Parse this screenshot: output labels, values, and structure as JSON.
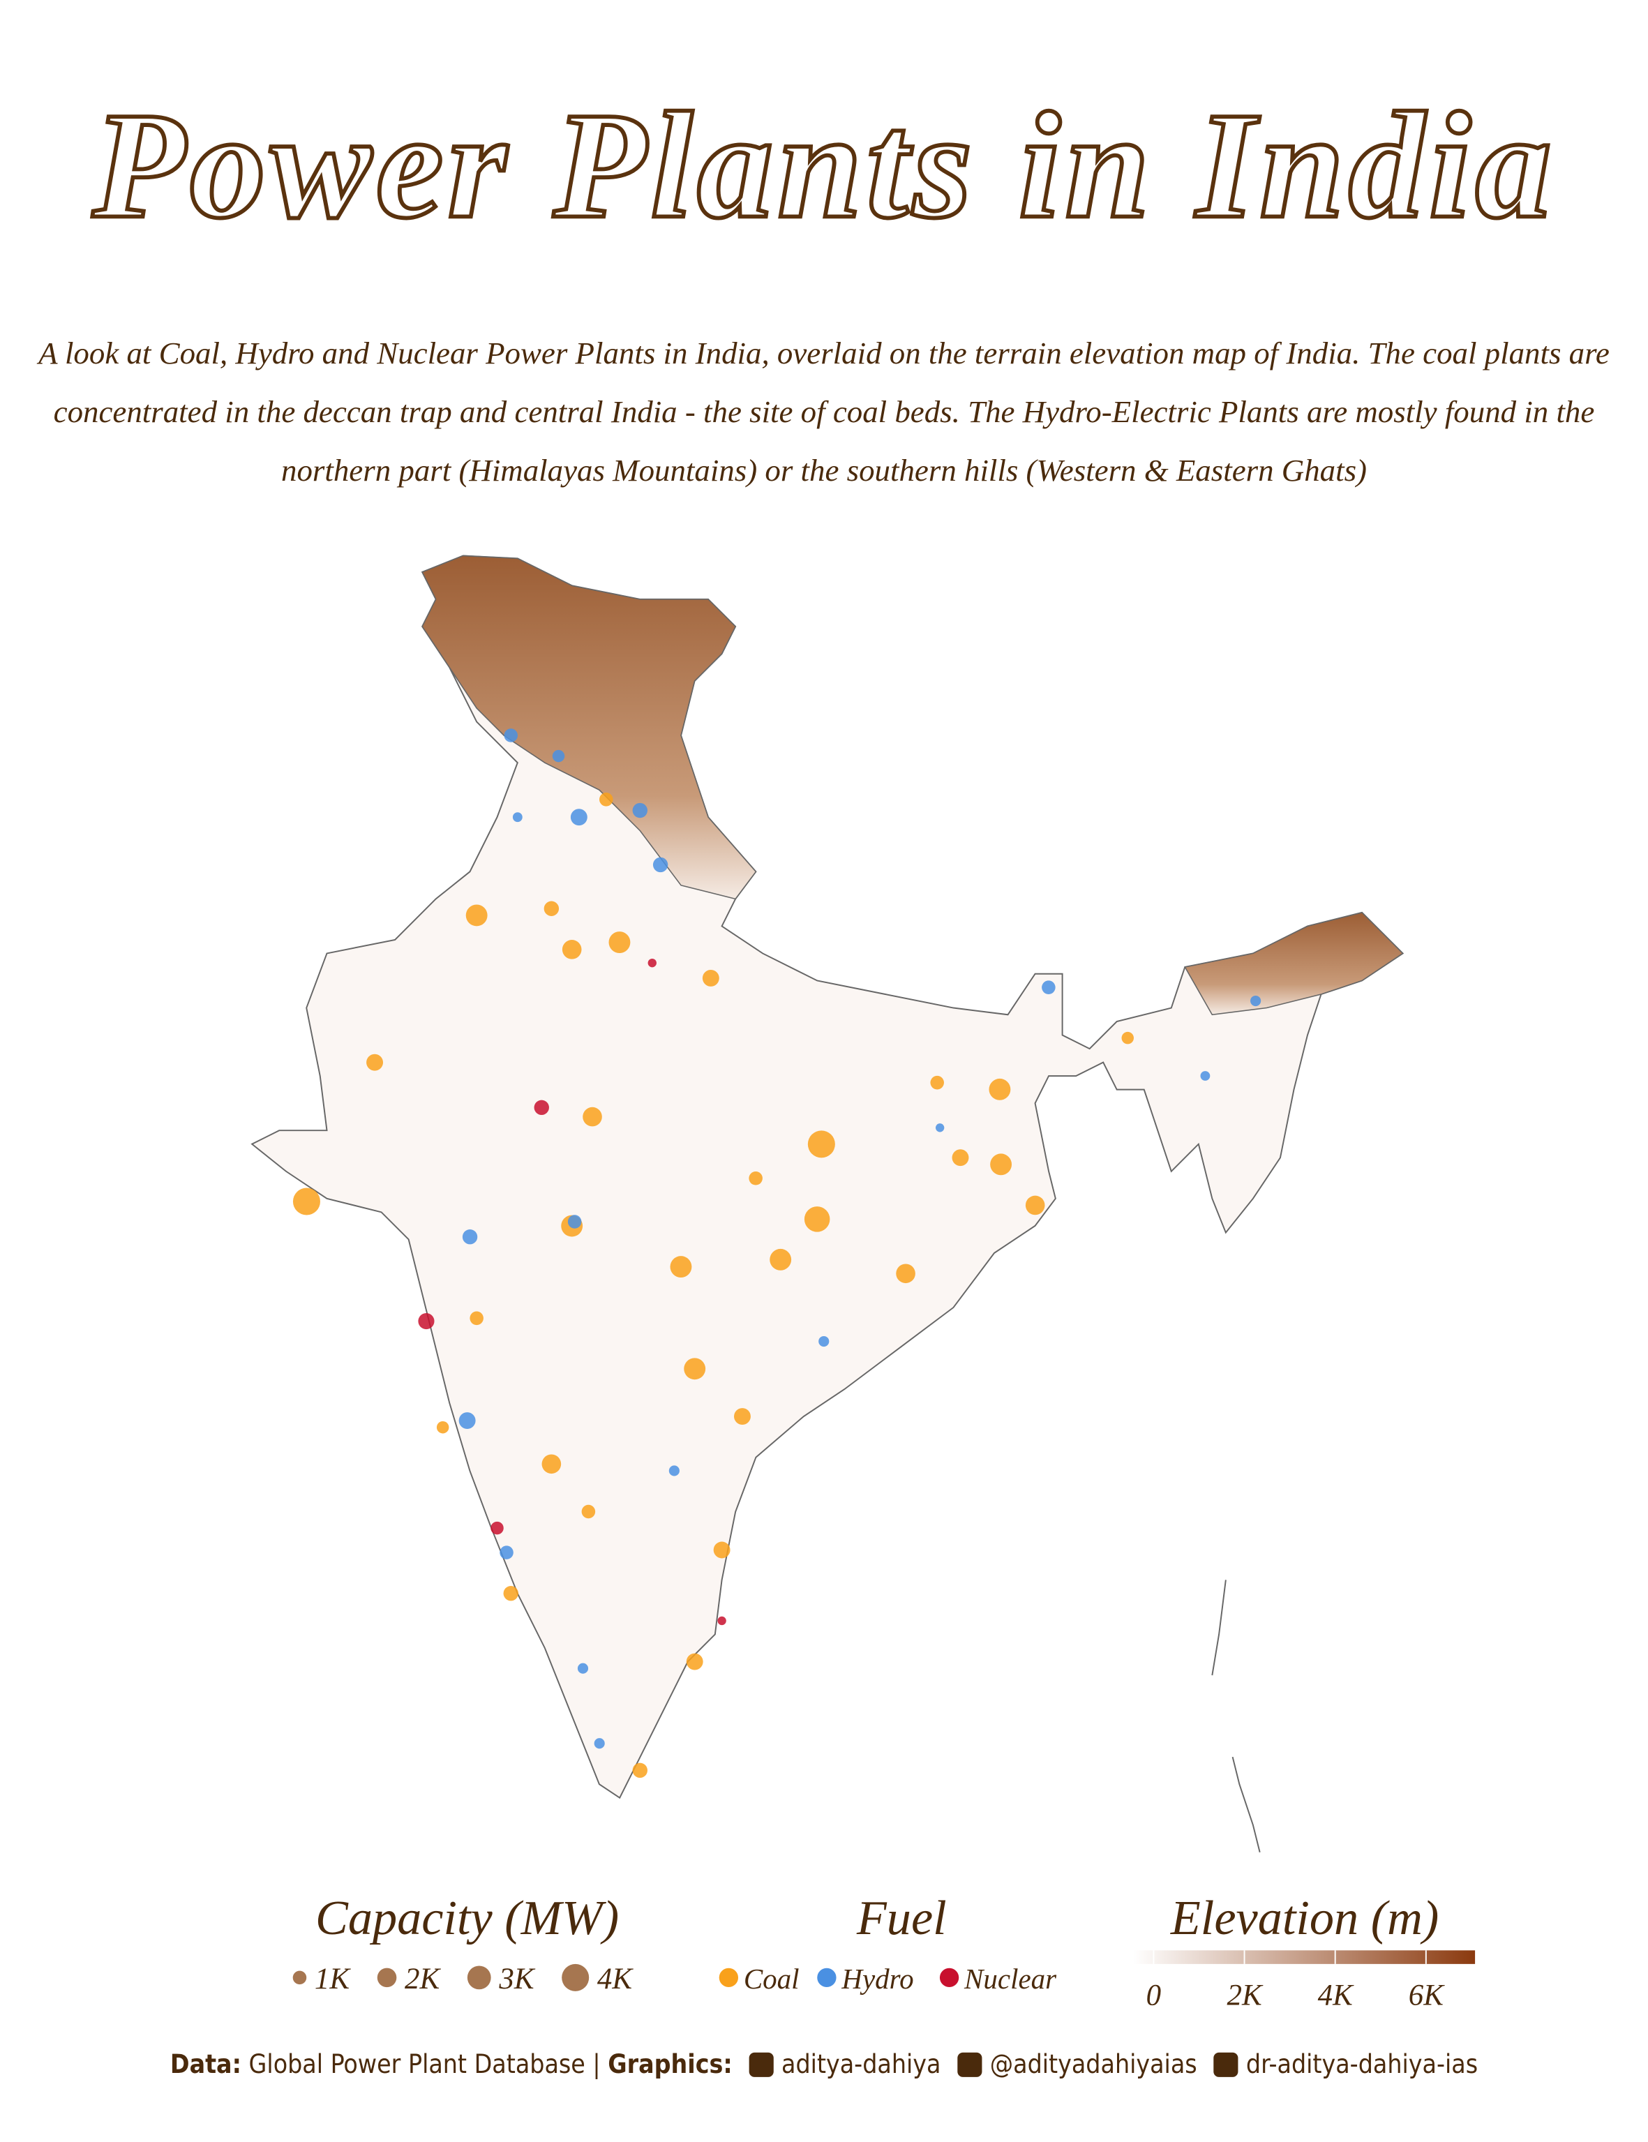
{
  "chart_data": {
    "type": "map",
    "title": "Power Plants in India",
    "subtitle": "A look at Coal, Hydro and Nuclear Power Plants in India, overlaid on the terrain elevation map of India. The coal plants are concentrated in the deccan trap and central India - the site of coal beds. The Hydro-Electric Plants are mostly found in the northern part (Himalayas Mountains) or the southern hills (Western & Eastern Ghats)",
    "size_legend": {
      "title": "Capacity (MW)",
      "color": "#a67650",
      "ticks": [
        {
          "value": 1000,
          "label": "1K"
        },
        {
          "value": 2000,
          "label": "2K"
        },
        {
          "value": 3000,
          "label": "3K"
        },
        {
          "value": 4000,
          "label": "4K"
        }
      ]
    },
    "fuel_legend_title": "Fuel",
    "series": [
      {
        "name": "Coal",
        "color": "#f9a11b",
        "lon": [
          73.94,
          76.36,
          77.57,
          75.84,
          79.89,
          71.35,
          69.62,
          76.88,
          82.7,
          82.59,
          87.23,
          87.26,
          86.23,
          76.36,
          79.13,
          79.48,
          75.84,
          80.69,
          80.17,
          79.48,
          78.09,
          73.94,
          73.08,
          84.84,
          88.13,
          81.03,
          85.64,
          90.48,
          77.23,
          81.66,
          74.81,
          76.78
        ],
        "lat": [
          29.29,
          28.48,
          28.65,
          29.45,
          27.8,
          25.8,
          22.5,
          24.51,
          23.86,
          22.08,
          25.16,
          23.38,
          23.54,
          21.92,
          20.95,
          18.53,
          16.27,
          17.4,
          14.23,
          11.58,
          9.0,
          19.73,
          17.14,
          20.79,
          22.41,
          23.05,
          25.32,
          26.38,
          32.04,
          21.12,
          13.2,
          15.14
        ],
        "capacity": [
          2500,
          2000,
          2500,
          1200,
          1500,
          1500,
          4000,
          2000,
          4000,
          3500,
          2500,
          2500,
          1500,
          2500,
          2500,
          2500,
          2000,
          1500,
          1500,
          1500,
          1200,
          1000,
          800,
          2000,
          2000,
          1000,
          1000,
          800,
          1000,
          2500,
          1200,
          1000
        ]
      },
      {
        "name": "Hydro",
        "color": "#4a90e2",
        "lon": [
          74.81,
          76.02,
          76.54,
          78.09,
          78.61,
          88.47,
          93.73,
          73.77,
          73.7,
          74.7,
          76.64,
          77.06,
          82.76,
          78.96,
          76.43,
          92.45,
          85.71,
          74.98
        ],
        "lat": [
          33.56,
          33.07,
          31.62,
          31.78,
          30.49,
          27.58,
          27.26,
          21.66,
          17.3,
          14.17,
          11.42,
          9.64,
          19.18,
          16.11,
          22.02,
          25.48,
          24.25,
          31.62
        ],
        "capacity": [
          1000,
          800,
          1500,
          1200,
          1200,
          1000,
          600,
          1200,
          1500,
          1000,
          600,
          600,
          600,
          600,
          1000,
          500,
          400,
          500
        ]
      },
      {
        "name": "Nuclear",
        "color": "#c8102e",
        "lon": [
          72.66,
          74.46,
          80.17,
          78.4,
          75.59
        ],
        "lat": [
          19.66,
          14.75,
          12.55,
          28.16,
          24.73
        ],
        "capacity": [
          1400,
          900,
          400,
          400,
          1200
        ]
      }
    ],
    "elevation_legend": {
      "title": "Elevation (m)",
      "colors": [
        "#ffffff",
        "#8b3a0f"
      ],
      "lim": [
        -450,
        7080
      ],
      "ticks": [
        0,
        {
          "value": 2000,
          "label": "2K"
        },
        {
          "value": 4000,
          "label": "4K"
        },
        {
          "value": 6000,
          "label": "6K"
        }
      ]
    }
  },
  "caption": {
    "data_label": "Data:",
    "data_source": "Global Power Plant Database |",
    "graphics_label": "Graphics:",
    "github": "aditya-dahiya",
    "x": "@adityadahiyaias",
    "linkedin": "dr-aditya-dahiya-ias"
  }
}
